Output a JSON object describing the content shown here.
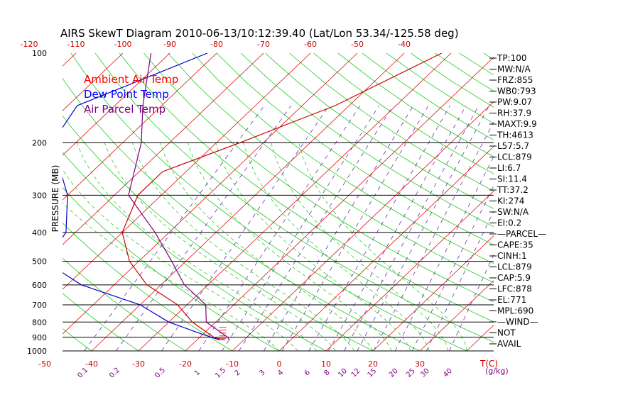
{
  "chart_data": {
    "type": "line",
    "title": "AIRS SkewT Diagram 2010-06-13/10:12:39.40 (Lat/Lon 53.34/-125.58 deg)",
    "ylabel": "PRESSURE (MB)",
    "y_scale": "log",
    "ylim": [
      1000,
      100
    ],
    "pressure_ticks": [
      100,
      200,
      300,
      400,
      500,
      600,
      700,
      800,
      900,
      1000
    ],
    "bottom_temp_ticks": [
      -50,
      -40,
      -30,
      -20,
      -10,
      0,
      10,
      20,
      30
    ],
    "bottom_temp_unit": "T(C)",
    "top_temp_ticks": [
      -120,
      -110,
      -100,
      -90,
      -80,
      -70,
      -60,
      -50,
      -40
    ],
    "mixing_ratio_labels": [
      "0.1",
      "0.2",
      "0.5",
      "1",
      "1.5",
      "2",
      "3",
      "4",
      "6",
      "8",
      "10",
      "12",
      "15",
      "20",
      "25",
      "30",
      "40"
    ],
    "mixing_ratio_unit": "(g/kg)",
    "legend": [
      {
        "label": "Ambient Air Temp",
        "color": "#ff0000"
      },
      {
        "label": "Dew Point Temp",
        "color": "#0000ff"
      },
      {
        "label": "Air Parcel Temp",
        "color": "#800080"
      }
    ],
    "series": [
      {
        "name": "Ambient Air Temp",
        "color": "#cc0000",
        "points": [
          [
            -32,
            100
          ],
          [
            -43,
            150
          ],
          [
            -55,
            200
          ],
          [
            -65,
            250
          ],
          [
            -65,
            300
          ],
          [
            -60,
            400
          ],
          [
            -52,
            500
          ],
          [
            -43,
            600
          ],
          [
            -32,
            700
          ],
          [
            -25,
            800
          ],
          [
            -17,
            900
          ],
          [
            -14,
            920
          ]
        ]
      },
      {
        "name": "Dew Point Temp",
        "color": "#0000cc",
        "points": [
          [
            -82,
            100
          ],
          [
            -98,
            150
          ],
          [
            -95,
            200
          ],
          [
            -80,
            300
          ],
          [
            -72,
            400
          ],
          [
            -70,
            500
          ],
          [
            -57,
            600
          ],
          [
            -40,
            700
          ],
          [
            -30,
            800
          ],
          [
            -20,
            880
          ],
          [
            -15,
            920
          ]
        ]
      },
      {
        "name": "Air Parcel Temp",
        "color": "#800080",
        "points": [
          [
            -94,
            100
          ],
          [
            -84,
            150
          ],
          [
            -76,
            200
          ],
          [
            -67,
            300
          ],
          [
            -53,
            400
          ],
          [
            -43,
            500
          ],
          [
            -35,
            600
          ],
          [
            -26,
            700
          ],
          [
            -22,
            800
          ],
          [
            -14,
            900
          ],
          [
            -13,
            920
          ]
        ]
      }
    ],
    "indices": [
      "TP:100",
      "MW:N/A",
      "FRZ:855",
      "WB0:793",
      "PW:9.07",
      "RH:37.9",
      "MAXT:9.9",
      "TH:4613",
      "L57:5.7",
      "LCL:879",
      "LI:6.7",
      "SI:11.4",
      "TT:37.2",
      "KI:274",
      "SW:N/A",
      "EI:0.2",
      "—PARCEL—",
      "CAPE:35",
      "CINH:1",
      "LCL:879",
      "CAP:5.9",
      "LFC:878",
      "EL:771",
      "MPL:690",
      "—WIND—",
      "NOT",
      "AVAIL"
    ],
    "grid": true
  }
}
